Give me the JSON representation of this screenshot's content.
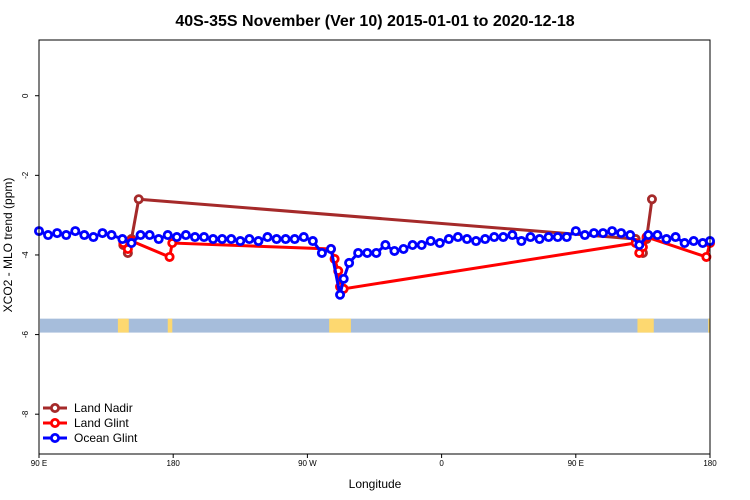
{
  "chart_data": {
    "type": "line",
    "title": "40S-35S November (Ver 10)   2015-01-01 to 2020-12-18",
    "xlabel": "Longitude",
    "ylabel": "XCO2 - MLO trend (ppm)",
    "xlim": [
      90,
      460
    ],
    "ylim": [
      -9.0,
      1.4
    ],
    "x_ticks": [
      {
        "value": 90,
        "label": "90 E"
      },
      {
        "value": 164,
        "label": "180"
      },
      {
        "value": 238,
        "label": "90 W"
      },
      {
        "value": 312,
        "label": "0"
      },
      {
        "value": 386,
        "label": "90 E"
      },
      {
        "value": 460,
        "label": "180"
      }
    ],
    "y_ticks": [
      {
        "value": 0,
        "label": "0"
      },
      {
        "value": -2,
        "label": "-2"
      },
      {
        "value": -4,
        "label": "-4"
      },
      {
        "value": -6,
        "label": "-6"
      },
      {
        "value": -8,
        "label": "-8"
      }
    ],
    "land_band": {
      "ymin": -5.95,
      "ymax": -5.6,
      "ocean_color": "#a6bddb",
      "land_color": "#fdd870",
      "land_segments": [
        [
          133.5,
          139.5
        ],
        [
          161,
          163.5
        ],
        [
          250,
          262
        ],
        [
          420,
          429
        ],
        [
          459,
          461
        ]
      ]
    },
    "series": [
      {
        "name": "Land Nadir",
        "color": "#a52a2a",
        "x": [
          136.5,
          139,
          141,
          145,
          419,
          423,
          425,
          428
        ],
        "y": [
          -3.75,
          -3.95,
          -3.6,
          -2.6,
          -3.6,
          -3.95,
          -3.6,
          -2.6
        ]
      },
      {
        "name": "Land Glint",
        "color": "#ff0000",
        "x": [
          136.5,
          139,
          141,
          162,
          163.5,
          251,
          253,
          255,
          256,
          258,
          419,
          421,
          423,
          425,
          458,
          460
        ],
        "y": [
          -3.7,
          -3.85,
          -3.65,
          -4.05,
          -3.7,
          -3.85,
          -4.1,
          -4.4,
          -4.8,
          -4.85,
          -3.7,
          -3.95,
          -3.8,
          -3.55,
          -4.05,
          -3.7
        ]
      },
      {
        "name": "Ocean Glint",
        "color": "#0000ff",
        "x": [
          90,
          95,
          100,
          105,
          110,
          115,
          120,
          125,
          130,
          136,
          141,
          146,
          151,
          156,
          161,
          166,
          171,
          176,
          181,
          186,
          191,
          196,
          201,
          206,
          211,
          216,
          221,
          226,
          231,
          236,
          241,
          246,
          251,
          256,
          258,
          261,
          266,
          271,
          276,
          281,
          286,
          291,
          296,
          301,
          306,
          311,
          316,
          321,
          326,
          331,
          336,
          341,
          346,
          351,
          356,
          361,
          366,
          371,
          376,
          381,
          386,
          391,
          396,
          401,
          406,
          411,
          416,
          421,
          426,
          431,
          436,
          441,
          446,
          451,
          456,
          460
        ],
        "y": [
          -3.4,
          -3.5,
          -3.45,
          -3.5,
          -3.4,
          -3.5,
          -3.55,
          -3.45,
          -3.5,
          -3.6,
          -3.7,
          -3.5,
          -3.5,
          -3.6,
          -3.5,
          -3.55,
          -3.5,
          -3.55,
          -3.55,
          -3.6,
          -3.6,
          -3.6,
          -3.65,
          -3.6,
          -3.65,
          -3.55,
          -3.6,
          -3.6,
          -3.6,
          -3.55,
          -3.65,
          -3.95,
          -3.85,
          -5.0,
          -4.6,
          -4.2,
          -3.95,
          -3.95,
          -3.95,
          -3.75,
          -3.9,
          -3.85,
          -3.75,
          -3.75,
          -3.65,
          -3.7,
          -3.6,
          -3.55,
          -3.6,
          -3.65,
          -3.6,
          -3.55,
          -3.55,
          -3.5,
          -3.65,
          -3.55,
          -3.6,
          -3.55,
          -3.55,
          -3.55,
          -3.4,
          -3.5,
          -3.45,
          -3.45,
          -3.4,
          -3.45,
          -3.5,
          -3.75,
          -3.5,
          -3.5,
          -3.6,
          -3.55,
          -3.7,
          -3.65,
          -3.7,
          -3.65
        ]
      }
    ],
    "legend": [
      {
        "label": "Land Nadir",
        "color": "#a52a2a"
      },
      {
        "label": "Land Glint",
        "color": "#ff0000"
      },
      {
        "label": "Ocean Glint",
        "color": "#0000ff"
      }
    ],
    "legend_position": "bottom-left"
  }
}
